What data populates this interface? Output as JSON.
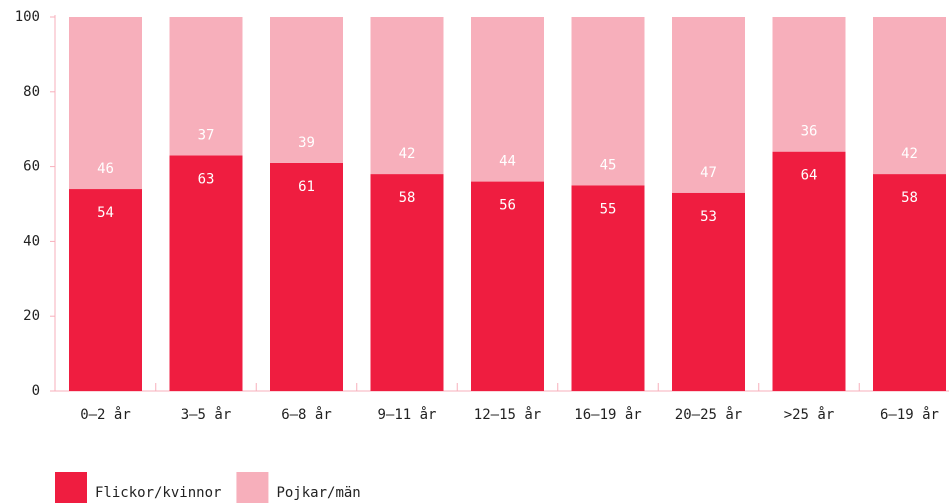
{
  "chart_data": {
    "type": "stacked_bar",
    "categories": [
      "0–2 år",
      "3–5 år",
      "6–8 år",
      "9–11 år",
      "12–15 år",
      "16–19 år",
      "20–25 år",
      ">25 år",
      "6–19 år"
    ],
    "series": [
      {
        "name": "Flickor/kvinnor",
        "color": "#ef1d40",
        "values": [
          54,
          63,
          61,
          58,
          56,
          55,
          53,
          64,
          58
        ]
      },
      {
        "name": "Pojkar/män",
        "color": "#f7afbb",
        "values": [
          46,
          37,
          39,
          42,
          44,
          45,
          47,
          36,
          42
        ]
      }
    ],
    "ylim": [
      0,
      100
    ],
    "yticks": [
      0,
      20,
      40,
      60,
      80,
      100
    ],
    "legend": "bottom-left"
  }
}
